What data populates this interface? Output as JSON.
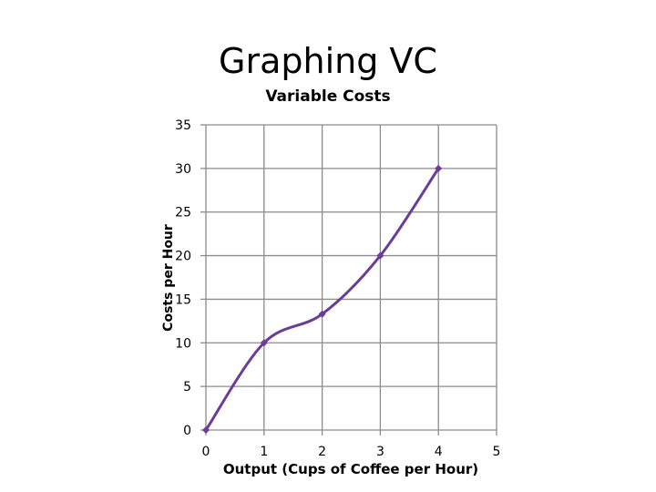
{
  "slide": {
    "title": "Graphing VC"
  },
  "chart_data": {
    "type": "line",
    "title": "Variable Costs",
    "xlabel": "Output (Cups of Coffee per Hour)",
    "ylabel": "Costs per Hour",
    "x": [
      0,
      1,
      2,
      3,
      4
    ],
    "series": [
      {
        "values": [
          0,
          10,
          13.3,
          20,
          30
        ]
      }
    ],
    "xlim": [
      0,
      5
    ],
    "ylim": [
      0,
      35
    ],
    "xticks": [
      0,
      1,
      2,
      3,
      4,
      5
    ],
    "yticks": [
      0,
      5,
      10,
      15,
      20,
      25,
      30,
      35
    ],
    "grid": "vertical and horizontal",
    "legend": "none",
    "line_color": "#6a3d9a",
    "grid_color": "#8c8c8c",
    "smooth": true
  }
}
